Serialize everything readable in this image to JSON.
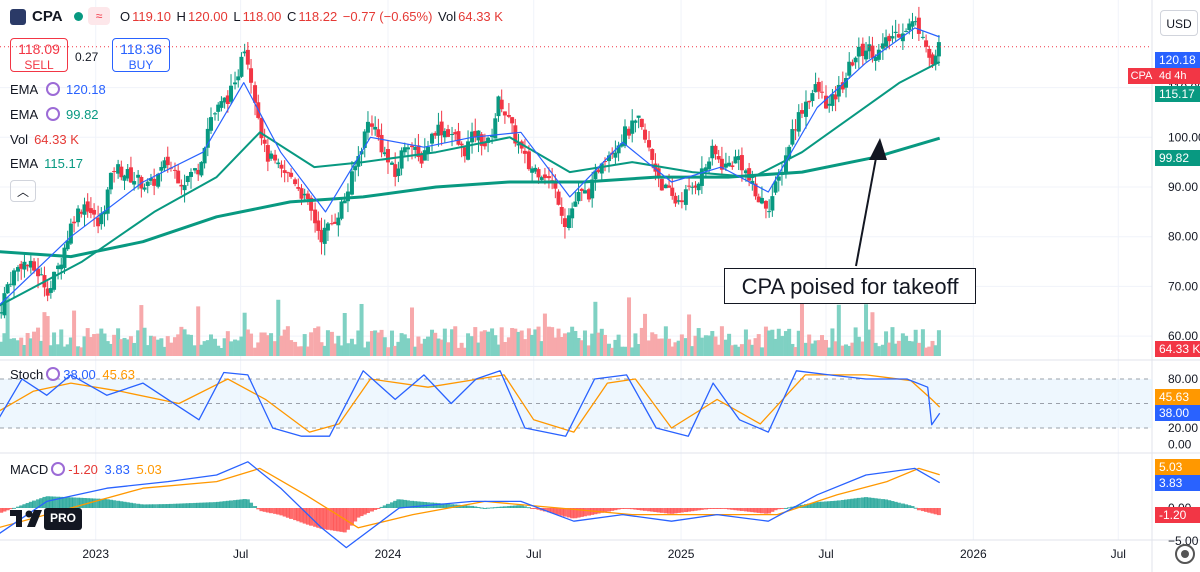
{
  "header": {
    "symbol": "CPA",
    "open_label": "O",
    "open": "119.10",
    "high_label": "H",
    "high": "120.00",
    "low_label": "L",
    "low": "118.00",
    "close_label": "C",
    "close": "118.22",
    "change": "−0.77 (−0.65%)",
    "vol_label": "Vol",
    "vol": "64.33 K",
    "currency": "USD"
  },
  "trade": {
    "sell_price": "118.09",
    "sell_label": "SELL",
    "spread": "0.27",
    "buy_price": "118.36",
    "buy_label": "BUY"
  },
  "indicators": [
    {
      "name": "EMA",
      "value": "120.18",
      "color": "#2962ff"
    },
    {
      "name": "EMA",
      "value": "99.82",
      "color": "#089981"
    },
    {
      "name": "Vol",
      "value": "64.33 K",
      "color": "#f23645"
    },
    {
      "name": "EMA",
      "value": "115.17",
      "color": "#089981"
    }
  ],
  "stoch": {
    "name": "Stoch",
    "k": "38.00",
    "d": "45.63"
  },
  "macd": {
    "name": "MACD",
    "hist": "-1.20",
    "macd": "3.83",
    "signal": "5.03"
  },
  "price_tags": {
    "ema_fast": "120.18",
    "symbol_tag": "CPA",
    "period": "4d 4h",
    "ema_mid": "115.17",
    "ema_slow": "99.82",
    "vol": "64.33 K",
    "stoch_d": "45.63",
    "stoch_k": "38.00",
    "macd_signal": "5.03",
    "macd_line": "3.83",
    "macd_hist": "-1.20"
  },
  "annotation": "CPA poised for takeoff",
  "logo_text": "PRO",
  "colors": {
    "up": "#089981",
    "down": "#f23645",
    "vol_up": "#7fd1c3",
    "vol_down": "#f7a9ab",
    "ema_fast": "#2962ff",
    "ema_mid": "#089981",
    "ema_slow": "#089981",
    "stoch_k": "#2962ff",
    "stoch_d": "#ff9800",
    "macd": "#2962ff",
    "signal": "#ff9800",
    "hist_up": "#26a69a",
    "hist_down": "#ff5252"
  },
  "chart_data": {
    "type": "candlestick",
    "timeframe": "4d 4h",
    "x_axis_labels": [
      "2023",
      "Jul",
      "2024",
      "Jul",
      "2025",
      "Jul",
      "2026",
      "Jul"
    ],
    "price_axis_ticks": [
      110.0,
      100.0,
      90.0,
      80.0,
      70.0,
      60.0
    ],
    "price_range": [
      56,
      124
    ],
    "stoch_axis_ticks": [
      80.0,
      20.0,
      0.0
    ],
    "stoch_levels": [
      80,
      50,
      20
    ],
    "macd_axis_ticks": [
      0.0,
      -5.0
    ],
    "price_path": [
      [
        "2022-09-01",
        64
      ],
      [
        "2022-09-15",
        71
      ],
      [
        "2022-10-01",
        75
      ],
      [
        "2022-10-20",
        73
      ],
      [
        "2022-11-05",
        69
      ],
      [
        "2022-11-20",
        76
      ],
      [
        "2022-12-05",
        84
      ],
      [
        "2022-12-20",
        87
      ],
      [
        "2023-01-05",
        82
      ],
      [
        "2023-01-25",
        94
      ],
      [
        "2023-02-15",
        92
      ],
      [
        "2023-03-10",
        90
      ],
      [
        "2023-04-01",
        95
      ],
      [
        "2023-04-20",
        91
      ],
      [
        "2023-05-10",
        94
      ],
      [
        "2023-05-25",
        104
      ],
      [
        "2023-06-10",
        107
      ],
      [
        "2023-06-25",
        110
      ],
      [
        "2023-07-05",
        120
      ],
      [
        "2023-07-15",
        112
      ],
      [
        "2023-08-01",
        97
      ],
      [
        "2023-08-20",
        93
      ],
      [
        "2023-09-05",
        92
      ],
      [
        "2023-09-25",
        86
      ],
      [
        "2023-10-10",
        80
      ],
      [
        "2023-10-25",
        83
      ],
      [
        "2023-11-10",
        88
      ],
      [
        "2023-11-25",
        96
      ],
      [
        "2023-12-10",
        104
      ],
      [
        "2023-12-25",
        98
      ],
      [
        "2024-01-10",
        92
      ],
      [
        "2024-01-25",
        100
      ],
      [
        "2024-02-10",
        95
      ],
      [
        "2024-03-01",
        102
      ],
      [
        "2024-03-20",
        101
      ],
      [
        "2024-04-05",
        97
      ],
      [
        "2024-04-20",
        101
      ],
      [
        "2024-05-05",
        98
      ],
      [
        "2024-05-20",
        108
      ],
      [
        "2024-06-05",
        101
      ],
      [
        "2024-06-25",
        94
      ],
      [
        "2024-07-15",
        93
      ],
      [
        "2024-08-01",
        88
      ],
      [
        "2024-08-10",
        83
      ],
      [
        "2024-08-25",
        88
      ],
      [
        "2024-09-10",
        89
      ],
      [
        "2024-09-25",
        96
      ],
      [
        "2024-10-10",
        98
      ],
      [
        "2024-10-25",
        101
      ],
      [
        "2024-11-10",
        103
      ],
      [
        "2024-11-25",
        96
      ],
      [
        "2024-12-10",
        90
      ],
      [
        "2024-12-25",
        87
      ],
      [
        "2025-01-10",
        89
      ],
      [
        "2025-01-25",
        92
      ],
      [
        "2025-02-10",
        97
      ],
      [
        "2025-02-25",
        94
      ],
      [
        "2025-03-15",
        96
      ],
      [
        "2025-04-05",
        88
      ],
      [
        "2025-04-20",
        86
      ],
      [
        "2025-05-05",
        92
      ],
      [
        "2025-05-20",
        101
      ],
      [
        "2025-06-05",
        107
      ],
      [
        "2025-06-20",
        110
      ],
      [
        "2025-07-05",
        106
      ],
      [
        "2025-07-20",
        110
      ],
      [
        "2025-08-05",
        116
      ],
      [
        "2025-08-20",
        118
      ],
      [
        "2025-09-05",
        117
      ],
      [
        "2025-09-20",
        120
      ],
      [
        "2025-10-05",
        122
      ],
      [
        "2025-10-20",
        123
      ],
      [
        "2025-11-01",
        121
      ],
      [
        "2025-11-10",
        114
      ],
      [
        "2025-11-20",
        118.22
      ]
    ],
    "ema_fast_path": [
      [
        "2022-09-01",
        66
      ],
      [
        "2022-12-01",
        80
      ],
      [
        "2023-03-01",
        91
      ],
      [
        "2023-05-15",
        97
      ],
      [
        "2023-07-05",
        111
      ],
      [
        "2023-08-20",
        97
      ],
      [
        "2023-10-15",
        85
      ],
      [
        "2023-12-10",
        100
      ],
      [
        "2024-02-15",
        98
      ],
      [
        "2024-04-15",
        100
      ],
      [
        "2024-06-15",
        101
      ],
      [
        "2024-08-15",
        88
      ],
      [
        "2024-10-20",
        99
      ],
      [
        "2024-12-20",
        91
      ],
      [
        "2025-02-20",
        94
      ],
      [
        "2025-04-20",
        89
      ],
      [
        "2025-06-20",
        106
      ],
      [
        "2025-08-20",
        115
      ],
      [
        "2025-10-20",
        122
      ],
      [
        "2025-11-20",
        120.18
      ]
    ],
    "ema_mid_path": [
      [
        "2022-09-01",
        66
      ],
      [
        "2022-12-15",
        75
      ],
      [
        "2023-03-15",
        85
      ],
      [
        "2023-06-01",
        92
      ],
      [
        "2023-07-25",
        101
      ],
      [
        "2023-10-01",
        94
      ],
      [
        "2023-12-01",
        95
      ],
      [
        "2024-03-01",
        97
      ],
      [
        "2024-06-01",
        100
      ],
      [
        "2024-08-15",
        93
      ],
      [
        "2024-11-01",
        95
      ],
      [
        "2025-01-15",
        93
      ],
      [
        "2025-04-01",
        92
      ],
      [
        "2025-06-01",
        97
      ],
      [
        "2025-08-01",
        104
      ],
      [
        "2025-10-01",
        111
      ],
      [
        "2025-11-20",
        115.17
      ]
    ],
    "ema_slow_path": [
      [
        "2022-09-01",
        77
      ],
      [
        "2022-12-01",
        76
      ],
      [
        "2023-03-01",
        79
      ],
      [
        "2023-06-01",
        84
      ],
      [
        "2023-09-01",
        87
      ],
      [
        "2023-12-01",
        88
      ],
      [
        "2024-03-01",
        90
      ],
      [
        "2024-06-01",
        91
      ],
      [
        "2024-09-01",
        91
      ],
      [
        "2024-12-01",
        92
      ],
      [
        "2025-03-01",
        92
      ],
      [
        "2025-06-01",
        93
      ],
      [
        "2025-09-01",
        96
      ],
      [
        "2025-11-20",
        99.82
      ]
    ],
    "stoch_k_path": [
      [
        "2022-09-01",
        30
      ],
      [
        "2022-10-01",
        80
      ],
      [
        "2022-11-01",
        60
      ],
      [
        "2022-12-01",
        85
      ],
      [
        "2023-01-15",
        60
      ],
      [
        "2023-03-01",
        75
      ],
      [
        "2023-04-01",
        55
      ],
      [
        "2023-05-10",
        30
      ],
      [
        "2023-06-10",
        88
      ],
      [
        "2023-07-10",
        85
      ],
      [
        "2023-08-10",
        20
      ],
      [
        "2023-09-15",
        10
      ],
      [
        "2023-10-20",
        10
      ],
      [
        "2023-12-01",
        90
      ],
      [
        "2024-01-10",
        55
      ],
      [
        "2024-02-15",
        85
      ],
      [
        "2024-03-20",
        50
      ],
      [
        "2024-04-20",
        80
      ],
      [
        "2024-05-20",
        90
      ],
      [
        "2024-06-20",
        20
      ],
      [
        "2024-08-10",
        10
      ],
      [
        "2024-09-15",
        80
      ],
      [
        "2024-10-25",
        85
      ],
      [
        "2024-12-01",
        20
      ],
      [
        "2025-01-10",
        10
      ],
      [
        "2025-02-10",
        75
      ],
      [
        "2025-03-15",
        30
      ],
      [
        "2025-04-20",
        15
      ],
      [
        "2025-05-25",
        90
      ],
      [
        "2025-07-05",
        85
      ],
      [
        "2025-08-20",
        80
      ],
      [
        "2025-10-10",
        80
      ],
      [
        "2025-11-05",
        70
      ],
      [
        "2025-11-10",
        24
      ],
      [
        "2025-11-20",
        38.0
      ]
    ],
    "stoch_d_path": [
      [
        "2022-09-01",
        40
      ],
      [
        "2022-10-15",
        65
      ],
      [
        "2022-12-01",
        75
      ],
      [
        "2023-02-01",
        65
      ],
      [
        "2023-04-15",
        50
      ],
      [
        "2023-06-15",
        80
      ],
      [
        "2023-08-01",
        55
      ],
      [
        "2023-09-25",
        15
      ],
      [
        "2023-11-01",
        25
      ],
      [
        "2023-12-10",
        80
      ],
      [
        "2024-02-20",
        70
      ],
      [
        "2024-05-25",
        85
      ],
      [
        "2024-07-01",
        30
      ],
      [
        "2024-08-20",
        15
      ],
      [
        "2024-10-01",
        75
      ],
      [
        "2024-11-05",
        80
      ],
      [
        "2024-12-20",
        20
      ],
      [
        "2025-02-15",
        55
      ],
      [
        "2025-04-10",
        25
      ],
      [
        "2025-06-05",
        85
      ],
      [
        "2025-08-20",
        85
      ],
      [
        "2025-10-15",
        78
      ],
      [
        "2025-11-10",
        55
      ],
      [
        "2025-11-20",
        45.63
      ]
    ],
    "macd_path": [
      [
        "2022-09-01",
        -4
      ],
      [
        "2022-11-01",
        1
      ],
      [
        "2023-01-15",
        3
      ],
      [
        "2023-04-01",
        4
      ],
      [
        "2023-06-01",
        5
      ],
      [
        "2023-07-10",
        7
      ],
      [
        "2023-08-20",
        3
      ],
      [
        "2023-10-10",
        -3
      ],
      [
        "2023-11-10",
        -6
      ],
      [
        "2024-01-15",
        0
      ],
      [
        "2024-04-15",
        1
      ],
      [
        "2024-06-15",
        1
      ],
      [
        "2024-08-20",
        -2
      ],
      [
        "2024-10-20",
        -1
      ],
      [
        "2024-12-20",
        -2
      ],
      [
        "2025-02-15",
        -1
      ],
      [
        "2025-04-20",
        -2
      ],
      [
        "2025-06-20",
        2
      ],
      [
        "2025-08-20",
        5
      ],
      [
        "2025-10-20",
        6
      ],
      [
        "2025-11-20",
        3.83
      ]
    ],
    "signal_path": [
      [
        "2022-09-01",
        -3
      ],
      [
        "2022-12-01",
        0
      ],
      [
        "2023-03-01",
        3
      ],
      [
        "2023-06-01",
        4
      ],
      [
        "2023-07-25",
        6
      ],
      [
        "2023-09-20",
        2
      ],
      [
        "2023-11-25",
        -3
      ],
      [
        "2024-02-01",
        -1
      ],
      [
        "2024-05-01",
        1
      ],
      [
        "2024-08-01",
        0
      ],
      [
        "2024-11-01",
        -1
      ],
      [
        "2025-02-01",
        -1
      ],
      [
        "2025-05-01",
        -1
      ],
      [
        "2025-07-15",
        2
      ],
      [
        "2025-09-15",
        4
      ],
      [
        "2025-10-25",
        6
      ],
      [
        "2025-11-20",
        5.03
      ]
    ]
  }
}
